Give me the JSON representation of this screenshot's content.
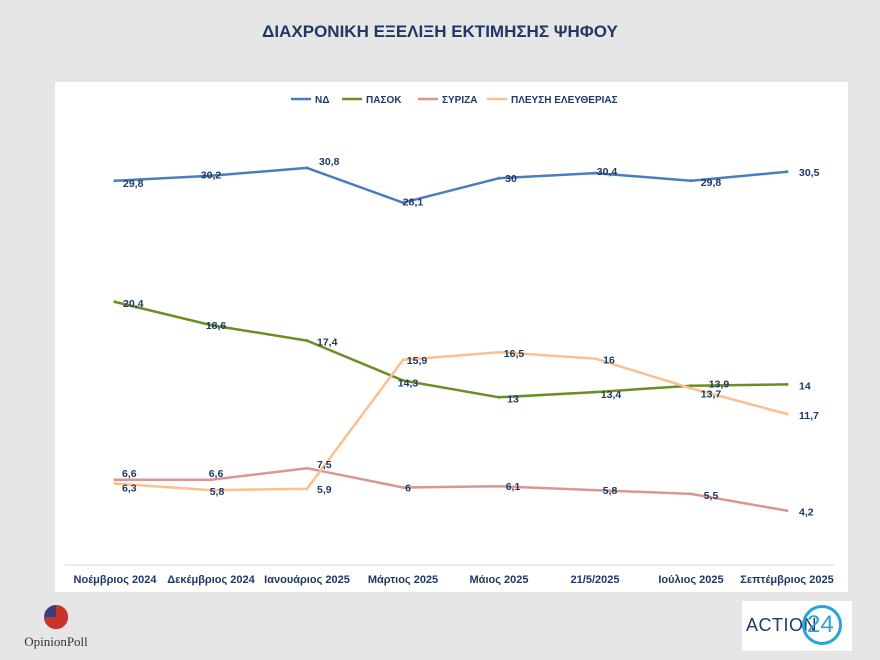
{
  "title": "ΔΙΑΧΡΟΝΙΚΗ ΕΞΕΛΙΞΗ ΕΚΤΙΜΗΣΗΣ ΨΗΦΟΥ",
  "chart_data": {
    "type": "line",
    "title": "ΔΙΑΧΡΟΝΙΚΗ ΕΞΕΛΙΞΗ ΕΚΤΙΜΗΣΗΣ ΨΗΦΟΥ",
    "xlabel": "",
    "ylabel": "",
    "ylim": [
      0,
      35
    ],
    "grid": false,
    "legend": "top",
    "categories": [
      "Νοέμβριος 2024",
      "Δεκέμβριος 2024",
      "Ιανουάριος 2025",
      "Μάρτιος 2025",
      "Μάιος 2025",
      "21/5/2025",
      "Ιούλιος 2025",
      "Σεπτέμβριος 2025"
    ],
    "series": [
      {
        "name": "ΝΔ",
        "color": "#4a7ebb",
        "values": [
          29.8,
          30.2,
          30.8,
          28.1,
          30,
          30.4,
          29.8,
          30.5
        ],
        "labels": [
          "29,8",
          "30,2",
          "30,8",
          "28,1",
          "30",
          "30,4",
          "29,8",
          "30,5"
        ]
      },
      {
        "name": "ΠΑΣΟΚ",
        "color": "#6b8e23",
        "values": [
          20.4,
          18.6,
          17.4,
          14.3,
          13,
          13.4,
          13.9,
          14
        ],
        "labels": [
          "20,4",
          "18,6",
          "17,4",
          "14,3",
          "13",
          "13,4",
          "13,9",
          "14"
        ]
      },
      {
        "name": "ΣΥΡΙΖΑ",
        "color": "#d99694",
        "values": [
          6.6,
          6.6,
          7.5,
          6,
          6.1,
          5.8,
          5.5,
          4.2
        ],
        "labels": [
          "6,6",
          "6,6",
          "7,5",
          "6",
          "6,1",
          "5,8",
          "5,5",
          "4,2"
        ]
      },
      {
        "name": "ΠΛΕΥΣΗ ΕΛΕΥΘΕΡΙΑΣ",
        "color": "#fac090",
        "values": [
          6.3,
          5.8,
          5.9,
          15.9,
          16.5,
          16,
          13.7,
          11.7
        ],
        "labels": [
          "6,3",
          "5,8",
          "5,9",
          "15,9",
          "16,5",
          "16",
          "13,7",
          "11,7"
        ]
      }
    ]
  },
  "logos": {
    "left": "OpinionPoll",
    "right_word": "ACTION",
    "right_number": "24"
  }
}
